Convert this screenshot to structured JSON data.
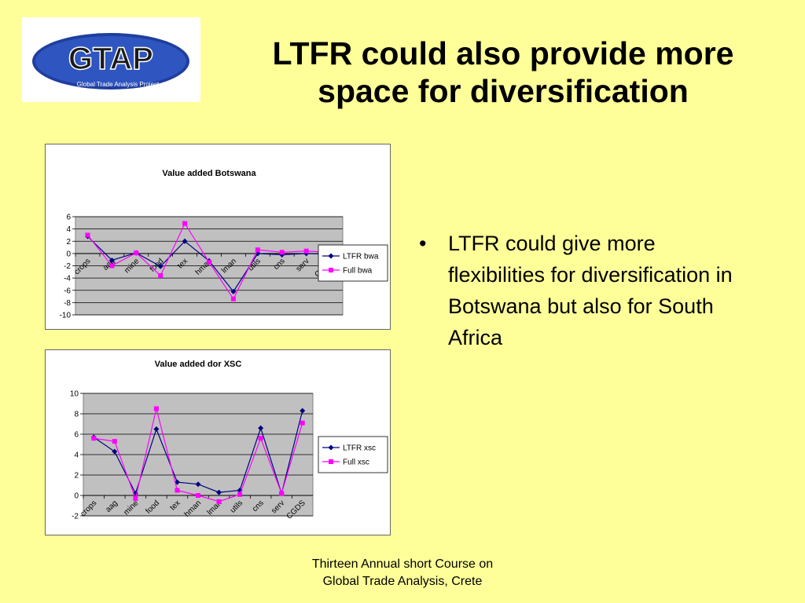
{
  "logo": {
    "text": "GTAP",
    "subtitle": "Global Trade Analysis Project"
  },
  "title": {
    "line1": "LTFR could also provide more",
    "line2": "space for diversification"
  },
  "bullet": {
    "text": "LTFR could give more flexibilities for diversification in Botswana but also for South Africa"
  },
  "footer": {
    "line1": "Thirteen Annual short Course on",
    "line2": "Global Trade Analysis, Crete"
  },
  "chart_data": [
    {
      "type": "line",
      "title": "Value added Botswana",
      "xlabel": "",
      "ylabel": "",
      "categories": [
        "crops",
        "aag",
        "mine",
        "food",
        "tex",
        "hman",
        "lman",
        "utils",
        "cns",
        "serv",
        "CGDS"
      ],
      "ylim": [
        -10,
        6
      ],
      "yticks": [
        6,
        4,
        2,
        0,
        -2,
        -4,
        -6,
        -8,
        -10
      ],
      "grid": true,
      "legend": "right",
      "series": [
        {
          "name": "LTFR bwa",
          "color": "#000080",
          "marker": "diamond",
          "values": [
            2.8,
            -1.1,
            0.1,
            -2.1,
            2.0,
            -1.2,
            -6.2,
            0.0,
            -0.2,
            0.0,
            -0.1
          ]
        },
        {
          "name": "Full bwa",
          "color": "#ff00ff",
          "marker": "square",
          "values": [
            3.0,
            -2.0,
            0.1,
            -3.6,
            4.9,
            -1.4,
            -7.4,
            0.6,
            0.2,
            0.4,
            0.2
          ]
        }
      ]
    },
    {
      "type": "line",
      "title": "Value added dor XSC",
      "xlabel": "",
      "ylabel": "",
      "categories": [
        "crops",
        "aag",
        "mine",
        "food",
        "tex",
        "hman",
        "lman",
        "utils",
        "cns",
        "serv",
        "CGDS"
      ],
      "ylim": [
        -2,
        10
      ],
      "yticks": [
        10,
        8,
        6,
        4,
        2,
        0,
        -2
      ],
      "grid": true,
      "legend": "right",
      "series": [
        {
          "name": "LTFR xsc",
          "color": "#000080",
          "marker": "diamond",
          "values": [
            5.7,
            4.3,
            0.2,
            6.5,
            1.3,
            1.1,
            0.3,
            0.5,
            6.6,
            0.2,
            8.3
          ]
        },
        {
          "name": "Full xsc",
          "color": "#ff00ff",
          "marker": "square",
          "values": [
            5.6,
            5.3,
            -0.3,
            8.5,
            0.5,
            0.0,
            -0.6,
            0.1,
            5.6,
            0.2,
            7.1
          ]
        }
      ]
    }
  ]
}
